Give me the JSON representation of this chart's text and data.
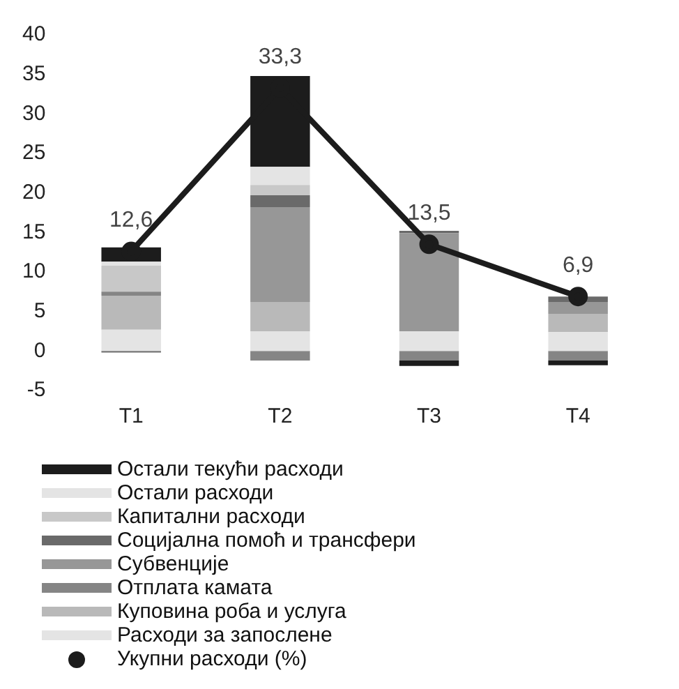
{
  "chart_data": {
    "type": "bar",
    "stacked": true,
    "categories": [
      "T1",
      "T2",
      "T3",
      "T4"
    ],
    "ylim": [
      -5,
      40
    ],
    "yticks": [
      -5,
      0,
      5,
      10,
      15,
      20,
      25,
      30,
      35,
      40
    ],
    "grid": false,
    "legend": "bottom",
    "marker": "circle",
    "series": [
      {
        "name": "Расходи за запослене",
        "color": "#e4e4e4",
        "values": [
          2.7,
          2.5,
          2.5,
          2.4
        ]
      },
      {
        "name": "Куповина роба и услуга",
        "color": "#b9b9b9",
        "values": [
          4.3,
          3.7,
          0,
          2.3
        ]
      },
      {
        "name": "Отплата камата",
        "color": "#858585",
        "values": [
          0.5,
          -1.2,
          -1.2,
          -1.2
        ]
      },
      {
        "name": "Субвенције",
        "color": "#979797",
        "values": [
          0,
          12,
          12.4,
          1.5
        ]
      },
      {
        "name": "Социјална помоћ и трансфери",
        "color": "#6a6a6a",
        "values": [
          -0.2,
          1.5,
          0.3,
          0.7
        ]
      },
      {
        "name": "Капитални расходи",
        "color": "#c8c8c8",
        "values": [
          3.3,
          1.3,
          0,
          0
        ]
      },
      {
        "name": "Остали расходи",
        "color": "#e4e4e4",
        "values": [
          0.5,
          2.3,
          0,
          0
        ]
      },
      {
        "name": "Остали текући расходи",
        "color": "#1c1c1c",
        "values": [
          1.8,
          11.5,
          -0.7,
          -0.6
        ]
      },
      {
        "name": "Укупни расходи (%)",
        "type": "line",
        "color": "#1c1c1c",
        "values": [
          12.6,
          33.3,
          13.5,
          6.9
        ],
        "value_labels": [
          "12,6",
          "33,3",
          "13,5",
          "6,9"
        ]
      }
    ]
  }
}
